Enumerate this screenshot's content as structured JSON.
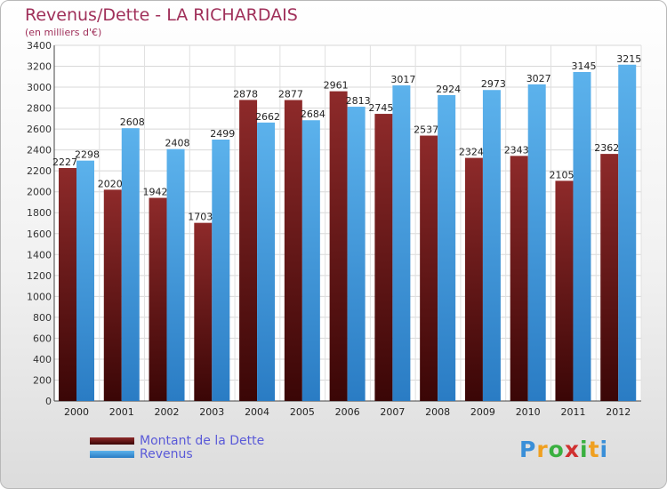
{
  "chart_data": {
    "type": "bar",
    "title": "Revenus/Dette - LA RICHARDAIS",
    "subtitle": "(en milliers d'€)",
    "categories": [
      "2000",
      "2001",
      "2002",
      "2003",
      "2004",
      "2005",
      "2006",
      "2007",
      "2008",
      "2009",
      "2010",
      "2011",
      "2012"
    ],
    "series": [
      {
        "name": "Montant de la Dette",
        "color": "#7a1a1a",
        "values": [
          2227,
          2020,
          1942,
          1703,
          2878,
          2877,
          2961,
          2745,
          2537,
          2324,
          2343,
          2105,
          2362
        ]
      },
      {
        "name": "Revenus",
        "color": "#4aa0e0",
        "values": [
          2298,
          2608,
          2408,
          2499,
          2662,
          2684,
          2813,
          3017,
          2924,
          2973,
          3027,
          3145,
          3215
        ]
      }
    ],
    "ylim": [
      0,
      3400
    ],
    "ytick_step": 200,
    "grid": true,
    "legend_position": "bottom-left"
  },
  "logo": {
    "letters": [
      "P",
      "r",
      "o",
      "x",
      "i",
      "t",
      "i"
    ],
    "colors": [
      "#3a8fd8",
      "#f0a020",
      "#3ab040",
      "#d03030",
      "#3ab040",
      "#f0a020",
      "#3a8fd8"
    ]
  }
}
